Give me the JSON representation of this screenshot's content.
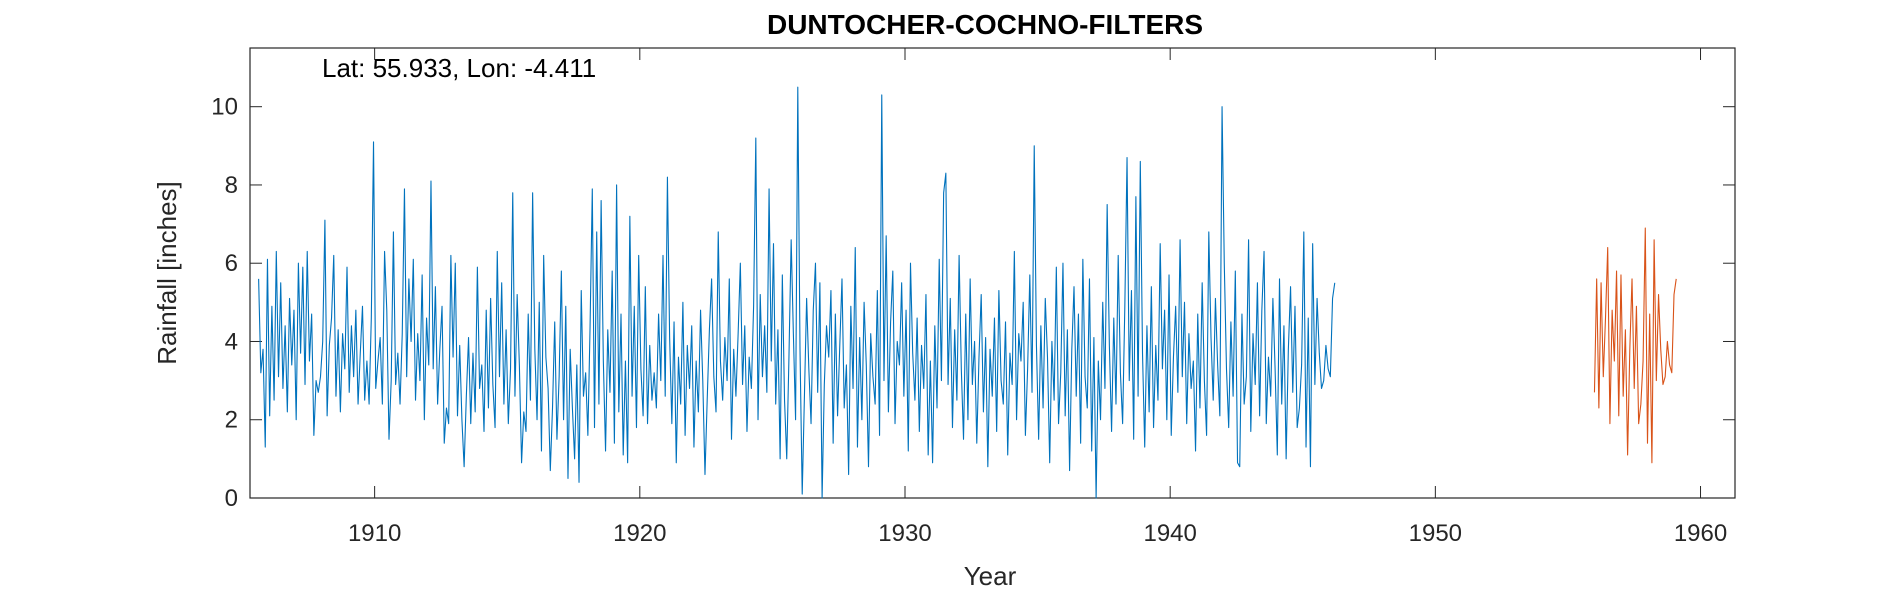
{
  "chart_data": {
    "type": "line",
    "title": "DUNTOCHER-COCHNO-FILTERS",
    "annotation": "Lat: 55.933, Lon: -4.411",
    "xlabel": "Year",
    "ylabel": "Rainfall [inches]",
    "xlim": [
      1905.3,
      1961.3
    ],
    "ylim": [
      0,
      11.5
    ],
    "x_ticks": [
      1910,
      1920,
      1930,
      1940,
      1950,
      1960
    ],
    "y_ticks": [
      0,
      2,
      4,
      6,
      8,
      10
    ],
    "grid": false,
    "series_colors": [
      "#0072BD",
      "#D95319"
    ],
    "series": [
      {
        "start_year": 1905.625,
        "step": 0.08333,
        "values": [
          5.6,
          3.2,
          3.8,
          1.3,
          6.1,
          2.1,
          4.9,
          2.5,
          6.3,
          3.1,
          5.5,
          2.8,
          4.4,
          2.2,
          5.1,
          3.4,
          4.8,
          2.0,
          6.0,
          3.7,
          5.9,
          2.9,
          6.3,
          3.5,
          4.7,
          1.6,
          3.0,
          2.7,
          3.1,
          4.0,
          7.1,
          2.1,
          3.9,
          4.6,
          6.2,
          2.6,
          4.3,
          2.2,
          4.2,
          3.3,
          5.9,
          2.7,
          4.4,
          3.1,
          4.8,
          2.4,
          3.7,
          4.9,
          2.5,
          3.5,
          2.4,
          4.6,
          9.1,
          2.8,
          3.5,
          4.1,
          2.4,
          6.3,
          4.8,
          1.5,
          3.0,
          6.8,
          2.9,
          3.7,
          2.4,
          4.2,
          7.9,
          3.1,
          5.6,
          4.0,
          6.1,
          2.5,
          4.2,
          3.0,
          5.7,
          2.0,
          4.6,
          3.4,
          8.1,
          3.3,
          5.4,
          2.4,
          3.8,
          4.9,
          1.4,
          2.3,
          1.9,
          6.2,
          3.6,
          6.0,
          2.1,
          3.9,
          2.0,
          0.8,
          2.6,
          4.1,
          1.9,
          3.7,
          2.2,
          5.9,
          2.8,
          3.4,
          1.7,
          4.8,
          2.3,
          5.1,
          2.9,
          1.8,
          6.3,
          3.1,
          5.5,
          2.4,
          4.3,
          1.9,
          3.3,
          7.8,
          2.6,
          5.2,
          3.4,
          0.9,
          2.2,
          1.7,
          4.7,
          2.5,
          7.8,
          3.8,
          2.0,
          5.0,
          1.2,
          6.2,
          3.6,
          2.8,
          0.7,
          2.3,
          4.5,
          1.5,
          3.1,
          5.8,
          2.0,
          4.9,
          0.5,
          3.8,
          2.3,
          1.0,
          3.4,
          0.4,
          5.3,
          2.6,
          3.2,
          1.6,
          4.4,
          7.9,
          1.8,
          6.8,
          2.4,
          7.6,
          3.5,
          1.2,
          4.3,
          2.7,
          5.8,
          1.4,
          8.0,
          2.2,
          4.7,
          1.1,
          3.5,
          0.9,
          7.2,
          2.6,
          4.9,
          1.8,
          6.2,
          3.3,
          2.1,
          5.4,
          1.9,
          3.9,
          2.5,
          3.2,
          2.3,
          4.7,
          3.0,
          6.2,
          2.6,
          8.2,
          4.1,
          1.9,
          4.5,
          0.9,
          3.6,
          2.4,
          5.0,
          1.6,
          3.9,
          2.8,
          4.4,
          1.3,
          3.5,
          2.2,
          4.8,
          3.0,
          0.6,
          2.5,
          4.3,
          5.6,
          3.1,
          2.2,
          6.8,
          3.5,
          2.5,
          4.1,
          3.0,
          5.6,
          1.5,
          3.8,
          2.6,
          4.2,
          6.0,
          2.9,
          4.4,
          1.7,
          3.6,
          2.8,
          4.9,
          9.2,
          2.0,
          5.2,
          3.1,
          4.4,
          2.7,
          7.9,
          3.5,
          6.5,
          2.4,
          4.3,
          1.0,
          5.7,
          2.5,
          1.0,
          3.6,
          6.6,
          4.2,
          2.0,
          10.5,
          3.8,
          0.1,
          2.6,
          5.1,
          3.3,
          1.9,
          4.8,
          6.0,
          2.7,
          5.5,
          0.0,
          2.9,
          4.4,
          3.6,
          5.3,
          1.4,
          4.7,
          2.1,
          3.9,
          5.6,
          2.3,
          3.4,
          0.6,
          4.9,
          2.8,
          6.4,
          1.3,
          4.1,
          2.0,
          5.0,
          3.4,
          0.8,
          4.2,
          3.1,
          2.4,
          5.3,
          1.6,
          10.3,
          3.0,
          6.7,
          2.2,
          4.5,
          5.8,
          1.9,
          4.0,
          3.4,
          5.5,
          2.6,
          4.8,
          1.2,
          6.0,
          3.7,
          2.5,
          4.6,
          1.7,
          3.9,
          2.8,
          5.2,
          1.1,
          3.5,
          0.9,
          4.4,
          2.3,
          6.1,
          3.0,
          7.8,
          8.3,
          2.9,
          5.1,
          1.8,
          4.3,
          2.5,
          6.2,
          3.3,
          1.5,
          4.7,
          2.0,
          5.6,
          2.9,
          4.0,
          1.4,
          3.6,
          5.2,
          2.2,
          4.1,
          0.8,
          3.8,
          2.6,
          4.6,
          1.7,
          5.3,
          3.0,
          2.4,
          4.5,
          1.1,
          3.7,
          2.9,
          6.3,
          2.0,
          4.2,
          3.5,
          5.0,
          1.6,
          3.3,
          5.7,
          2.7,
          9.0,
          3.9,
          1.5,
          4.4,
          2.3,
          5.1,
          3.6,
          0.9,
          4.0,
          2.5,
          5.9,
          1.9,
          3.2,
          6.0,
          2.1,
          4.3,
          0.7,
          3.8,
          5.4,
          2.6,
          4.7,
          1.4,
          6.1,
          3.1,
          2.3,
          5.6,
          1.2,
          4.1,
          0.0,
          3.5,
          2.0,
          5.0,
          2.8,
          7.5,
          3.9,
          1.7,
          4.6,
          2.4,
          6.2,
          3.2,
          1.9,
          4.9,
          8.7,
          3.0,
          5.3,
          1.5,
          7.7,
          2.6,
          8.6,
          3.7,
          1.3,
          4.4,
          2.2,
          5.4,
          1.8,
          3.9,
          2.5,
          6.5,
          3.3,
          4.8,
          2.0,
          5.7,
          1.6,
          3.6,
          4.9,
          2.7,
          6.6,
          3.1,
          5.0,
          1.9,
          4.2,
          2.8,
          3.5,
          1.2,
          4.7,
          2.3,
          5.5,
          3.0,
          1.6,
          6.8,
          4.1,
          2.5,
          5.1,
          3.4,
          2.1,
          10.0,
          6.0,
          3.3,
          1.8,
          4.5,
          2.6,
          5.8,
          0.9,
          0.8,
          4.7,
          2.4,
          3.1,
          6.6,
          1.7,
          4.2,
          2.9,
          5.5,
          2.1,
          4.8,
          6.3,
          1.9,
          3.6,
          2.6,
          5.1,
          3.3,
          1.1,
          5.6,
          2.4,
          4.4,
          1.0,
          3.8,
          5.4,
          2.7,
          4.9,
          1.8,
          2.3,
          3.4,
          6.8,
          1.3,
          4.6,
          0.8,
          6.5,
          2.9,
          5.1,
          3.7,
          2.8,
          3.0,
          3.9,
          3.3,
          3.1,
          5.1,
          5.5
        ]
      },
      {
        "start_year": 1956.0,
        "step": 0.08333,
        "values": [
          2.7,
          5.6,
          2.3,
          5.5,
          3.1,
          4.6,
          6.4,
          1.9,
          4.8,
          3.5,
          5.8,
          2.1,
          5.7,
          2.6,
          4.3,
          1.1,
          3.8,
          5.6,
          2.8,
          4.9,
          1.9,
          2.4,
          3.5,
          6.9,
          1.4,
          4.7,
          0.9,
          6.6,
          3.0,
          5.2,
          3.8,
          2.9,
          3.1,
          4.0,
          3.4,
          3.2,
          5.2,
          5.6
        ]
      }
    ]
  }
}
